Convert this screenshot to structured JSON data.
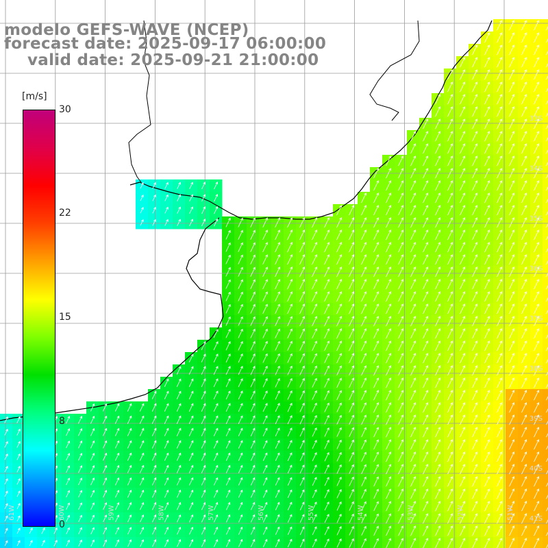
{
  "titles": {
    "line1": "modelo GEFS-WAVE (NCEP)",
    "line2": "forecast date: 2025-09-17 06:00:00",
    "line3": "valid date: 2025-09-21 21:00:00"
  },
  "colorbar": {
    "unit": "[m/s]",
    "ticks": [
      "30",
      "22",
      "15",
      "8",
      "0"
    ],
    "tick_values": [
      30,
      22,
      15,
      8,
      0
    ],
    "min": 0,
    "max": 30,
    "colors": [
      "#0000ff",
      "#0080ff",
      "#00ffff",
      "#00ff80",
      "#00e000",
      "#80ff00",
      "#ffff00",
      "#ffa000",
      "#ff4000",
      "#ff0000",
      "#e0004a",
      "#c0007a"
    ]
  },
  "map": {
    "lat_labels": [
      "33S",
      "34S",
      "35S",
      "36S",
      "37S",
      "38S",
      "39S",
      "40S",
      "41S"
    ],
    "lon_labels": [
      "61W",
      "60W",
      "59W",
      "58W",
      "57W",
      "56W",
      "55W",
      "54W",
      "53W",
      "52W",
      "51W"
    ],
    "land_color": "#ffffff",
    "grid_color": "#a0a0a0",
    "coast_color": "#000000",
    "arrow_color": "#ffffff"
  }
}
